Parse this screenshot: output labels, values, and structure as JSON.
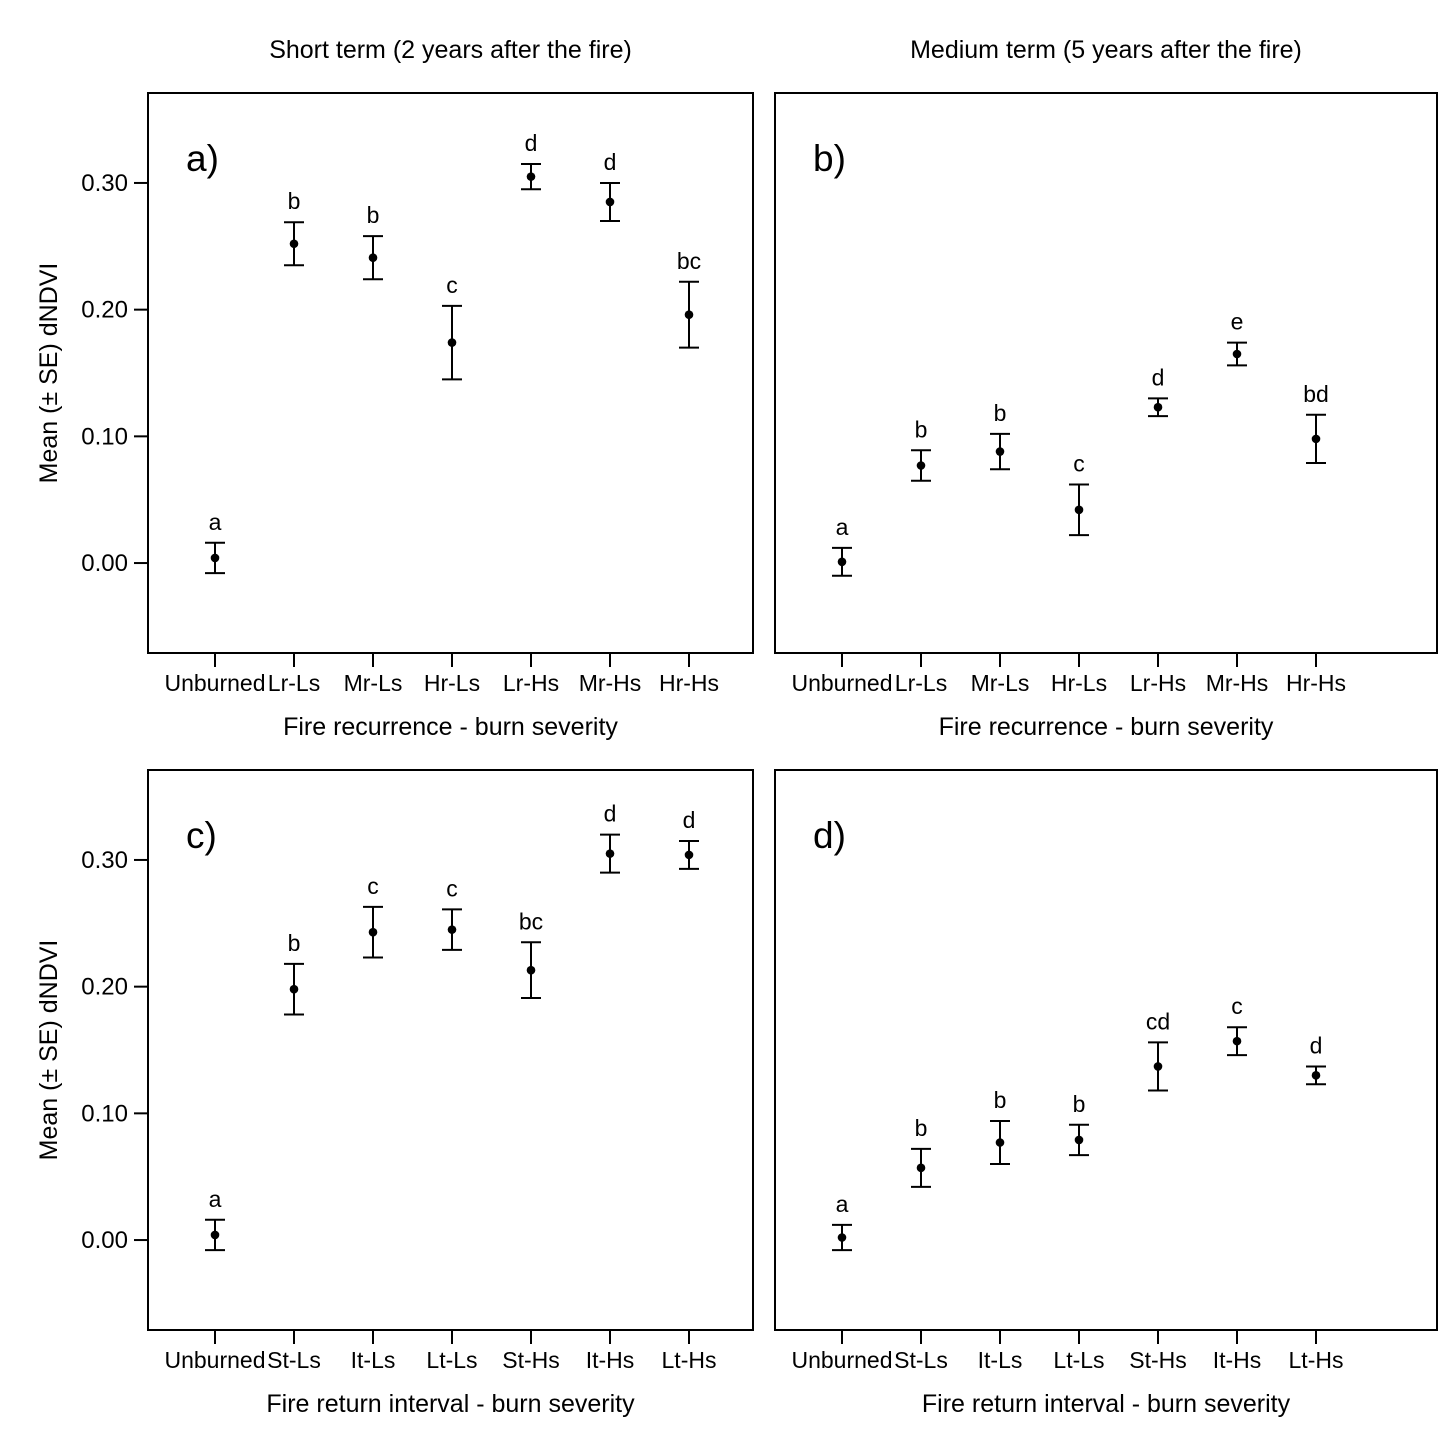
{
  "figure": {
    "background": "#ffffff",
    "ink_color": "#000000"
  },
  "chart_data": [
    {
      "type": "scatter",
      "variant": "point-errorbar",
      "panel_label": "a)",
      "title": "Short term (2 years after the fire)",
      "xlabel": "Fire recurrence - burn severity",
      "ylabel": "Mean (± SE) dNDVI",
      "show_y_axis": true,
      "categories": [
        "Unburned",
        "Lr-Ls",
        "Mr-Ls",
        "Hr-Ls",
        "Lr-Hs",
        "Mr-Hs",
        "Hr-Hs"
      ],
      "means": [
        0.004,
        0.252,
        0.241,
        0.174,
        0.305,
        0.285,
        0.196
      ],
      "se": [
        0.012,
        0.017,
        0.017,
        0.029,
        0.01,
        0.015,
        0.026
      ],
      "sig_letters": [
        "a",
        "b",
        "b",
        "c",
        "d",
        "d",
        "bc"
      ],
      "ylim": [
        -0.071,
        0.371
      ],
      "yticks": [
        0.0,
        0.1,
        0.2,
        0.3
      ],
      "ytick_labels": [
        "0.00",
        "0.10",
        "0.20",
        "0.30"
      ],
      "grid": false,
      "legend": "none"
    },
    {
      "type": "scatter",
      "variant": "point-errorbar",
      "panel_label": "b)",
      "title": "Medium term (5 years after the fire)",
      "xlabel": "Fire recurrence - burn severity",
      "ylabel": "",
      "show_y_axis": false,
      "categories": [
        "Unburned",
        "Lr-Ls",
        "Mr-Ls",
        "Hr-Ls",
        "Lr-Hs",
        "Mr-Hs",
        "Hr-Hs"
      ],
      "means": [
        0.001,
        0.077,
        0.088,
        0.042,
        0.123,
        0.165,
        0.098
      ],
      "se": [
        0.011,
        0.012,
        0.014,
        0.02,
        0.007,
        0.009,
        0.019
      ],
      "sig_letters": [
        "a",
        "b",
        "b",
        "c",
        "d",
        "e",
        "bd"
      ],
      "ylim": [
        -0.071,
        0.371
      ],
      "yticks": [
        0.0,
        0.1,
        0.2,
        0.3
      ],
      "ytick_labels": [
        "0.00",
        "0.10",
        "0.20",
        "0.30"
      ],
      "grid": false,
      "legend": "none"
    },
    {
      "type": "scatter",
      "variant": "point-errorbar",
      "panel_label": "c)",
      "title": "",
      "xlabel": "Fire return interval - burn severity",
      "ylabel": "Mean (± SE) dNDVI",
      "show_y_axis": true,
      "categories": [
        "Unburned",
        "St-Ls",
        "It-Ls",
        "Lt-Ls",
        "St-Hs",
        "It-Hs",
        "Lt-Hs"
      ],
      "means": [
        0.004,
        0.198,
        0.243,
        0.245,
        0.213,
        0.305,
        0.304
      ],
      "se": [
        0.012,
        0.02,
        0.02,
        0.016,
        0.022,
        0.015,
        0.011
      ],
      "sig_letters": [
        "a",
        "b",
        "c",
        "c",
        "bc",
        "d",
        "d"
      ],
      "ylim": [
        -0.071,
        0.371
      ],
      "yticks": [
        0.0,
        0.1,
        0.2,
        0.3
      ],
      "ytick_labels": [
        "0.00",
        "0.10",
        "0.20",
        "0.30"
      ],
      "grid": false,
      "legend": "none"
    },
    {
      "type": "scatter",
      "variant": "point-errorbar",
      "panel_label": "d)",
      "title": "",
      "xlabel": "Fire return interval - burn severity",
      "ylabel": "",
      "show_y_axis": false,
      "categories": [
        "Unburned",
        "St-Ls",
        "It-Ls",
        "Lt-Ls",
        "St-Hs",
        "It-Hs",
        "Lt-Hs"
      ],
      "means": [
        0.002,
        0.057,
        0.077,
        0.079,
        0.137,
        0.157,
        0.13
      ],
      "se": [
        0.01,
        0.015,
        0.017,
        0.012,
        0.019,
        0.011,
        0.007
      ],
      "sig_letters": [
        "a",
        "b",
        "b",
        "b",
        "cd",
        "c",
        "d"
      ],
      "ylim": [
        -0.071,
        0.371
      ],
      "yticks": [
        0.0,
        0.1,
        0.2,
        0.3
      ],
      "ytick_labels": [
        "0.00",
        "0.10",
        "0.20",
        "0.30"
      ],
      "grid": false,
      "legend": "none"
    }
  ]
}
